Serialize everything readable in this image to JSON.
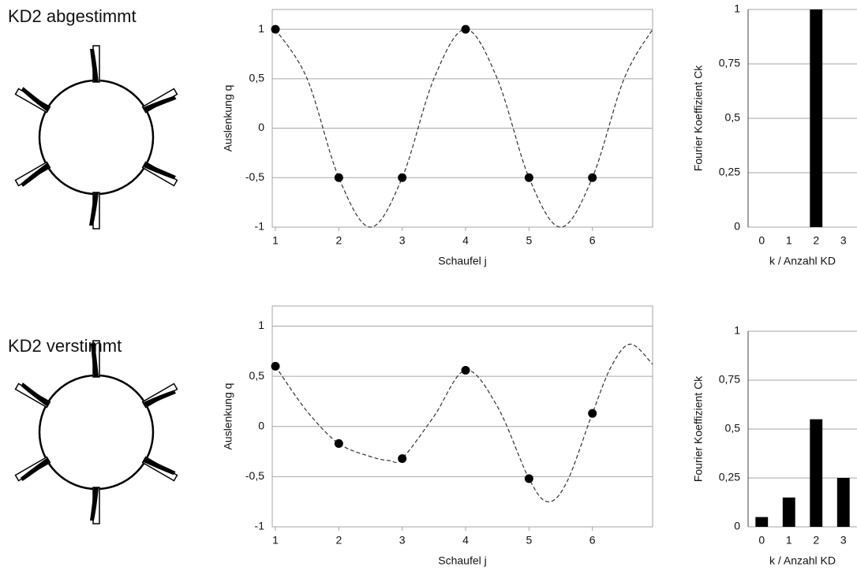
{
  "chart_data": [
    {
      "type": "line",
      "title": "KD2 abgestimmt",
      "xlabel": "Schaufel j",
      "ylabel": "Auslenkung q",
      "xlim": [
        0.95,
        6.95
      ],
      "ylim": [
        -1,
        1.2
      ],
      "xticks": [
        1,
        2,
        3,
        4,
        5,
        6
      ],
      "yticks": [
        -1,
        {
          "value": -0.5,
          "label": "-0,5"
        },
        0,
        {
          "value": 0.5,
          "label": "0,5"
        },
        1
      ],
      "grid": true,
      "series": [
        {
          "style": "dashed",
          "color": "#333333",
          "x": [
            1,
            1.5,
            2,
            2.5,
            3,
            3.5,
            4,
            4.5,
            5,
            5.5,
            6,
            6.5,
            6.95
          ],
          "values": [
            1,
            0.5,
            -0.5,
            -1,
            -0.5,
            0.5,
            1,
            0.5,
            -0.5,
            -1,
            -0.5,
            0.5,
            1
          ]
        },
        {
          "style": "markers",
          "color": "#000000",
          "x": [
            1,
            2,
            3,
            4,
            5,
            6
          ],
          "values": [
            1,
            -0.5,
            -0.5,
            1,
            -0.5,
            -0.5
          ]
        }
      ]
    },
    {
      "type": "bar",
      "xlabel": "k / Anzahl KD",
      "ylabel": "Fourier Koeffizient Ck",
      "color": "#000000",
      "categories": [
        "0",
        "1",
        "2",
        "3"
      ],
      "values": [
        0,
        0,
        1,
        0
      ],
      "ylim": [
        0,
        1
      ],
      "yticks": [
        0,
        {
          "value": 0.25,
          "label": "0,25"
        },
        {
          "value": 0.5,
          "label": "0,5"
        },
        {
          "value": 0.75,
          "label": "0,75"
        },
        1
      ],
      "grid": true
    },
    {
      "type": "line",
      "title": "KD2 verstimmt",
      "xlabel": "Schaufel j",
      "ylabel": "Auslenkung q",
      "xlim": [
        0.95,
        6.95
      ],
      "ylim": [
        -1,
        1.2
      ],
      "xticks": [
        1,
        2,
        3,
        4,
        5,
        6
      ],
      "yticks": [
        -1,
        {
          "value": -0.5,
          "label": "-0,5"
        },
        0,
        {
          "value": 0.5,
          "label": "0,5"
        },
        1
      ],
      "grid": true,
      "series": [
        {
          "style": "dashed",
          "color": "#333333",
          "x": [
            1,
            1.5,
            2,
            2.5,
            2.8,
            3,
            3.5,
            4,
            4.5,
            5,
            5.3,
            5.6,
            6,
            6.3,
            6.6,
            6.95
          ],
          "values": [
            0.6,
            0.15,
            -0.17,
            -0.3,
            -0.34,
            -0.32,
            0.1,
            0.56,
            0.2,
            -0.52,
            -0.75,
            -0.55,
            0.13,
            0.6,
            0.82,
            0.62
          ]
        },
        {
          "style": "markers",
          "color": "#000000",
          "x": [
            1,
            2,
            3,
            4,
            5,
            6
          ],
          "values": [
            0.6,
            -0.17,
            -0.32,
            0.56,
            -0.52,
            0.13
          ]
        }
      ]
    },
    {
      "type": "bar",
      "xlabel": "k / Anzahl KD",
      "ylabel": "Fourier Koeffizient Ck",
      "color": "#000000",
      "categories": [
        "0",
        "1",
        "2",
        "3"
      ],
      "values": [
        0.05,
        0.15,
        0.55,
        0.25
      ],
      "ylim": [
        0,
        1
      ],
      "yticks": [
        0,
        {
          "value": 0.25,
          "label": "0,25"
        },
        {
          "value": 0.5,
          "label": "0,5"
        },
        {
          "value": 0.75,
          "label": "0,75"
        },
        1
      ],
      "grid": true
    }
  ]
}
